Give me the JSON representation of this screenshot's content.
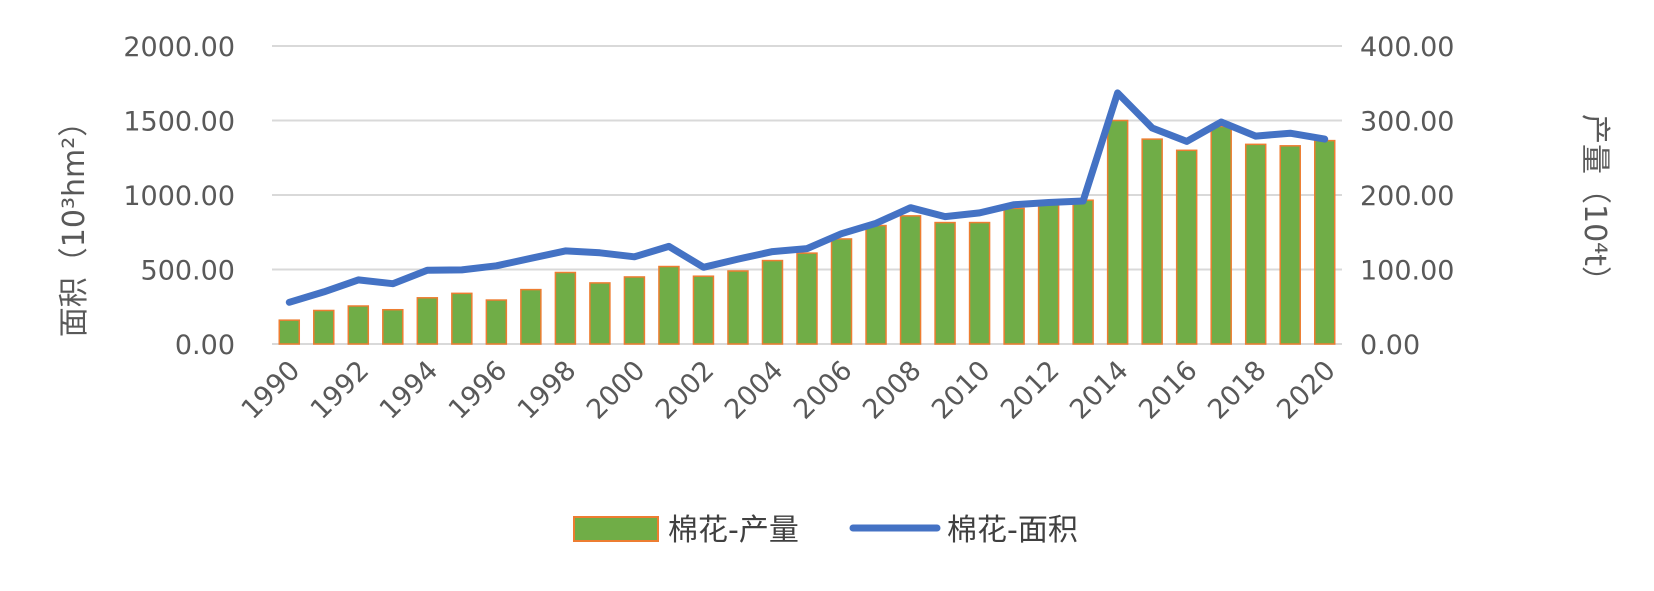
{
  "chart_data": {
    "type": "bar",
    "categories": [
      "1990",
      "1991",
      "1992",
      "1993",
      "1994",
      "1995",
      "1996",
      "1997",
      "1998",
      "1999",
      "2000",
      "2001",
      "2002",
      "2003",
      "2004",
      "2005",
      "2006",
      "2007",
      "2008",
      "2009",
      "2010",
      "2011",
      "2012",
      "2013",
      "2014",
      "2015",
      "2016",
      "2017",
      "2018",
      "2019",
      "2020"
    ],
    "x_tick_labels": [
      "1990",
      "1992",
      "1994",
      "1996",
      "1998",
      "2000",
      "2002",
      "2004",
      "2006",
      "2008",
      "2010",
      "2012",
      "2014",
      "2016",
      "2018",
      "2020"
    ],
    "series": [
      {
        "name": "棉花-产量",
        "type": "bar",
        "axis": "right",
        "color": "#70ad47",
        "edge_color": "#ed7d31",
        "values": [
          32,
          45,
          51,
          46,
          62,
          68,
          59,
          73,
          96,
          82,
          90,
          104,
          91,
          98,
          112,
          122,
          141,
          159,
          172,
          163,
          163,
          182,
          189,
          193,
          300,
          275,
          260,
          292,
          268,
          266,
          273
        ]
      },
      {
        "name": "棉花-面积",
        "type": "line",
        "axis": "left",
        "color": "#4472c4",
        "values": [
          280,
          350,
          430,
          405,
          495,
          497,
          525,
          575,
          625,
          612,
          585,
          655,
          515,
          570,
          620,
          640,
          740,
          810,
          915,
          855,
          880,
          935,
          950,
          960,
          1685,
          1450,
          1360,
          1490,
          1395,
          1415,
          1375
        ]
      }
    ],
    "y_left": {
      "label": "面积（10³hm²）",
      "ylim": [
        0,
        2000
      ],
      "ticks": [
        "0.00",
        "500.00",
        "1000.00",
        "1500.00",
        "2000.00"
      ]
    },
    "y_right": {
      "label": "产量（10⁴t）",
      "ylim": [
        0,
        400
      ],
      "ticks": [
        "0.00",
        "100.00",
        "200.00",
        "300.00",
        "400.00"
      ]
    },
    "grid": true,
    "legend": "bottom-center"
  }
}
